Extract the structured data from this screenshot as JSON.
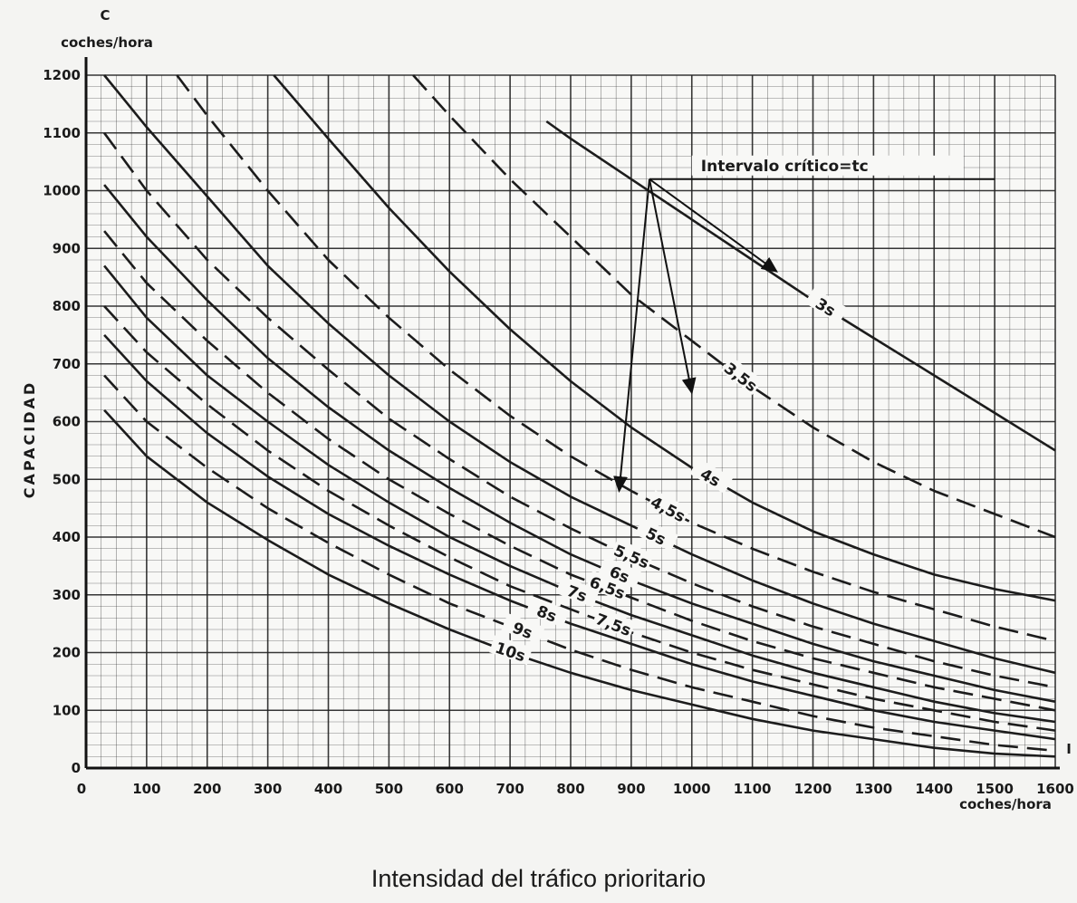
{
  "chart_data": {
    "type": "line",
    "title": "",
    "caption": "Intensidad del tráfico prioritario",
    "y_axis": {
      "symbol": "C",
      "unit": "coches/hora",
      "label": "CAPACIDAD",
      "range": [
        0,
        1200
      ]
    },
    "x_axis": {
      "symbol": "I",
      "unit": "coches/hora",
      "range": [
        0,
        1600
      ]
    },
    "x_ticks": [
      "0",
      "100",
      "200",
      "300",
      "400",
      "500",
      "600",
      "700",
      "800",
      "900",
      "1000",
      "1100",
      "1200",
      "1300",
      "1400",
      "1500",
      "1600"
    ],
    "y_ticks": [
      "0",
      "100",
      "200",
      "300",
      "400",
      "500",
      "600",
      "700",
      "800",
      "900",
      "1000",
      "1100",
      "1200"
    ],
    "annotation": "Intervalo crítico=tc",
    "grid": true,
    "series": [
      {
        "name": "3s",
        "dash": false,
        "label_at": 1220,
        "x": [
          760,
          800,
          900,
          1000,
          1100,
          1200,
          1300,
          1400,
          1500,
          1600
        ],
        "y": [
          1120,
          1090,
          1020,
          950,
          880,
          810,
          745,
          680,
          615,
          550
        ]
      },
      {
        "name": "3,5s",
        "dash": true,
        "label_at": 1080,
        "x": [
          540,
          600,
          700,
          800,
          900,
          1000,
          1100,
          1200,
          1300,
          1400,
          1500,
          1600
        ],
        "y": [
          1200,
          1130,
          1020,
          920,
          820,
          740,
          660,
          590,
          530,
          480,
          440,
          400
        ]
      },
      {
        "name": "4s",
        "dash": false,
        "label_at": 1030,
        "x": [
          310,
          400,
          500,
          600,
          700,
          800,
          900,
          1000,
          1100,
          1200,
          1300,
          1400,
          1500,
          1600
        ],
        "y": [
          1200,
          1090,
          970,
          860,
          760,
          670,
          590,
          520,
          460,
          410,
          370,
          335,
          310,
          290
        ]
      },
      {
        "name": "4,5s",
        "dash": true,
        "label_at": 960,
        "x": [
          150,
          200,
          300,
          400,
          500,
          600,
          700,
          800,
          900,
          1000,
          1100,
          1200,
          1300,
          1400,
          1500,
          1600
        ],
        "y": [
          1200,
          1130,
          1000,
          880,
          780,
          690,
          610,
          540,
          480,
          425,
          380,
          340,
          305,
          275,
          245,
          220
        ]
      },
      {
        "name": "5s",
        "dash": false,
        "label_at": 940,
        "x": [
          30,
          100,
          200,
          300,
          400,
          500,
          600,
          700,
          800,
          900,
          1000,
          1100,
          1200,
          1300,
          1400,
          1500,
          1600
        ],
        "y": [
          1200,
          1110,
          990,
          870,
          770,
          680,
          600,
          530,
          470,
          420,
          370,
          325,
          285,
          250,
          220,
          190,
          165
        ]
      },
      {
        "name": "5,5s",
        "dash": true,
        "label_at": 900,
        "x": [
          30,
          100,
          200,
          300,
          400,
          500,
          600,
          700,
          800,
          900,
          1000,
          1100,
          1200,
          1300,
          1400,
          1500,
          1600
        ],
        "y": [
          1100,
          1000,
          880,
          780,
          690,
          605,
          535,
          470,
          415,
          365,
          320,
          280,
          245,
          215,
          185,
          160,
          140
        ]
      },
      {
        "name": "6s",
        "dash": false,
        "label_at": 880,
        "x": [
          30,
          100,
          200,
          300,
          400,
          500,
          600,
          700,
          800,
          900,
          1000,
          1100,
          1200,
          1300,
          1400,
          1500,
          1600
        ],
        "y": [
          1010,
          920,
          810,
          710,
          625,
          550,
          485,
          425,
          370,
          325,
          285,
          250,
          215,
          185,
          160,
          135,
          115
        ]
      },
      {
        "name": "6,5s",
        "dash": true,
        "label_at": 860,
        "x": [
          30,
          100,
          200,
          300,
          400,
          500,
          600,
          700,
          800,
          900,
          1000,
          1100,
          1200,
          1300,
          1400,
          1500,
          1600
        ],
        "y": [
          930,
          840,
          740,
          650,
          570,
          500,
          440,
          385,
          335,
          295,
          255,
          220,
          190,
          165,
          140,
          120,
          100
        ]
      },
      {
        "name": "7s",
        "dash": false,
        "label_at": 810,
        "x": [
          30,
          100,
          200,
          300,
          400,
          500,
          600,
          700,
          800,
          900,
          1000,
          1100,
          1200,
          1300,
          1400,
          1500,
          1600
        ],
        "y": [
          870,
          780,
          680,
          600,
          525,
          460,
          400,
          350,
          305,
          265,
          230,
          195,
          165,
          140,
          115,
          95,
          80
        ]
      },
      {
        "name": "7,5s",
        "dash": true,
        "label_at": 870,
        "x": [
          30,
          100,
          200,
          300,
          400,
          500,
          600,
          700,
          800,
          900,
          1000,
          1100,
          1200,
          1300,
          1400,
          1500,
          1600
        ],
        "y": [
          800,
          720,
          630,
          550,
          480,
          420,
          365,
          315,
          275,
          235,
          200,
          170,
          145,
          120,
          100,
          80,
          65
        ]
      },
      {
        "name": "8s",
        "dash": false,
        "label_at": 760,
        "x": [
          30,
          100,
          200,
          300,
          400,
          500,
          600,
          700,
          800,
          900,
          1000,
          1100,
          1200,
          1300,
          1400,
          1500,
          1600
        ],
        "y": [
          750,
          670,
          580,
          505,
          440,
          385,
          335,
          290,
          250,
          215,
          180,
          150,
          125,
          100,
          80,
          65,
          50
        ]
      },
      {
        "name": "9s",
        "dash": true,
        "label_at": 720,
        "x": [
          30,
          100,
          200,
          300,
          400,
          500,
          600,
          700,
          800,
          900,
          1000,
          1100,
          1200,
          1300,
          1400,
          1500,
          1600
        ],
        "y": [
          680,
          600,
          520,
          450,
          390,
          335,
          285,
          245,
          205,
          170,
          140,
          115,
          90,
          70,
          55,
          40,
          30
        ]
      },
      {
        "name": "10s",
        "dash": false,
        "label_at": 700,
        "x": [
          30,
          100,
          200,
          300,
          400,
          500,
          600,
          700,
          800,
          900,
          1000,
          1100,
          1200,
          1300,
          1400,
          1500,
          1600
        ],
        "y": [
          620,
          540,
          460,
          395,
          335,
          285,
          240,
          200,
          165,
          135,
          110,
          85,
          65,
          50,
          35,
          25,
          20
        ]
      }
    ]
  }
}
